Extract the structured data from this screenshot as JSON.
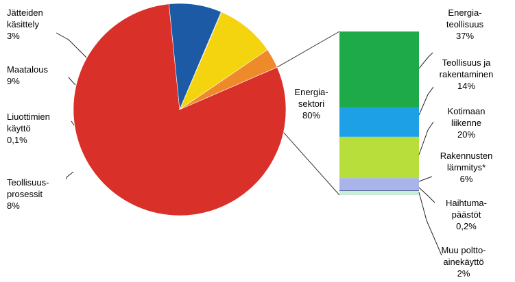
{
  "chart_data": [
    {
      "type": "pie",
      "categories": [
        "Energiasektori",
        "Teollisuusprosessit",
        "Liuottimien käyttö",
        "Maatalous",
        "Jätteiden käsittely"
      ],
      "values": [
        80,
        8,
        0.1,
        9,
        3
      ],
      "colors": [
        "#d9312a",
        "#1c5aa6",
        "#7c7c7c",
        "#f4d30f",
        "#ee8a2a"
      ],
      "labels": [
        {
          "lines": [
            "Energia-",
            "sektori",
            "80%"
          ]
        },
        {
          "lines": [
            "Teollisuus-",
            "prosessit",
            "8%"
          ]
        },
        {
          "lines": [
            "Liuottimien",
            "käyttö",
            "0,1%"
          ]
        },
        {
          "lines": [
            "Maatalous",
            "9%"
          ]
        },
        {
          "lines": [
            "Jätteiden",
            "käsittely",
            "3%"
          ]
        }
      ]
    },
    {
      "type": "bar",
      "stacked": true,
      "breakdown_of": "Energiasektori",
      "categories": [
        "Energiateollisuus",
        "Teollisuus ja rakentaminen",
        "Kotimaan liikenne",
        "Rakennusten lämmitys*",
        "Haihtumapäästöt",
        "Muu polttoainekäyttö"
      ],
      "values": [
        37,
        14,
        20,
        6,
        0.2,
        2
      ],
      "colors": [
        "#1faa4a",
        "#1ea0e6",
        "#b7de3a",
        "#a8b4ea",
        "#1a2a5a",
        "#c9eed8"
      ],
      "labels": [
        {
          "lines": [
            "Energia-",
            "teollisuus",
            "37%"
          ]
        },
        {
          "lines": [
            "Teollisuus ja",
            "rakentaminen",
            "14%"
          ]
        },
        {
          "lines": [
            "Kotimaan",
            "liikenne",
            "20%"
          ]
        },
        {
          "lines": [
            "Rakennusten",
            "lämmitys*",
            "6%"
          ]
        },
        {
          "lines": [
            "Haihtuma-",
            "päästöt",
            "0,2%"
          ]
        },
        {
          "lines": [
            "Muu poltto-",
            "ainekäyttö",
            "2%"
          ]
        }
      ]
    }
  ]
}
